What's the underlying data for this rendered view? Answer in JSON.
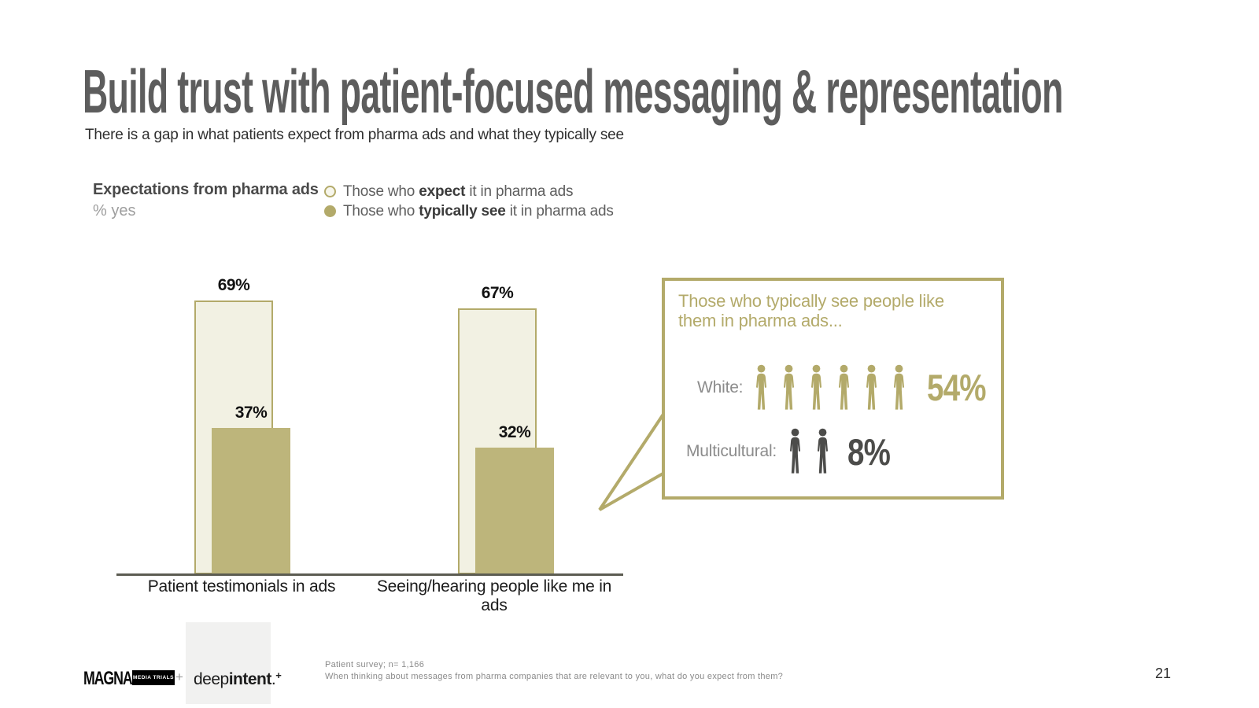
{
  "slide": {
    "title": "Build trust with patient-focused messaging & representation",
    "subtitle": "There is a gap in what patients expect from pharma ads and what they typically see",
    "page_number": "21"
  },
  "chart": {
    "heading": "Expectations from pharma ads",
    "subheading": "% yes",
    "legend": [
      {
        "prefix": "Those who ",
        "bold": "expect",
        "suffix": " it in pharma ads",
        "marker": "outline"
      },
      {
        "prefix": "Those who ",
        "bold": "typically see",
        "suffix": " it in pharma ads",
        "marker": "filled"
      }
    ]
  },
  "chart_data": {
    "type": "bar",
    "title": "Expectations from pharma ads",
    "ylabel": "% yes",
    "categories": [
      "Patient testimonials in ads",
      "Seeing/hearing people like me in ads"
    ],
    "series": [
      {
        "name": "Those who expect it in pharma ads",
        "values": [
          69,
          67
        ]
      },
      {
        "name": "Those who typically see it in pharma ads",
        "values": [
          37,
          32
        ]
      }
    ],
    "value_labels": [
      [
        "69%",
        "67%"
      ],
      [
        "37%",
        "32%"
      ]
    ],
    "ylim": [
      0,
      100
    ],
    "grid": false,
    "legend_position": "top-left"
  },
  "callout": {
    "title_line1": "Those who typically see people like",
    "title_line2": "them in pharma ads...",
    "rows": [
      {
        "label": "White:",
        "value": "54%",
        "icon_count": 6,
        "color": "#b3aa6a"
      },
      {
        "label": "Multicultural:",
        "value": "8%",
        "icon_count": 2,
        "color": "#4c4c4a"
      }
    ]
  },
  "footer": {
    "magna_text": "MAGNA",
    "magna_badge": "MEDIA TRIALS",
    "plus": "+",
    "deepintent": {
      "prefix": "deep",
      "bold": "intent",
      "dot": ".",
      "sup": "+"
    },
    "note_line1": "Patient survey; n= 1,166",
    "note_line2": "When thinking about messages from pharma companies that are relevant to you, what do you expect from them?"
  },
  "colors": {
    "khaki": "#b3aa6a",
    "khaki_fill": "#bdb57b",
    "cream": "#f2f1e3",
    "dark": "#4c4c4a",
    "axis": "#5c5c52"
  }
}
